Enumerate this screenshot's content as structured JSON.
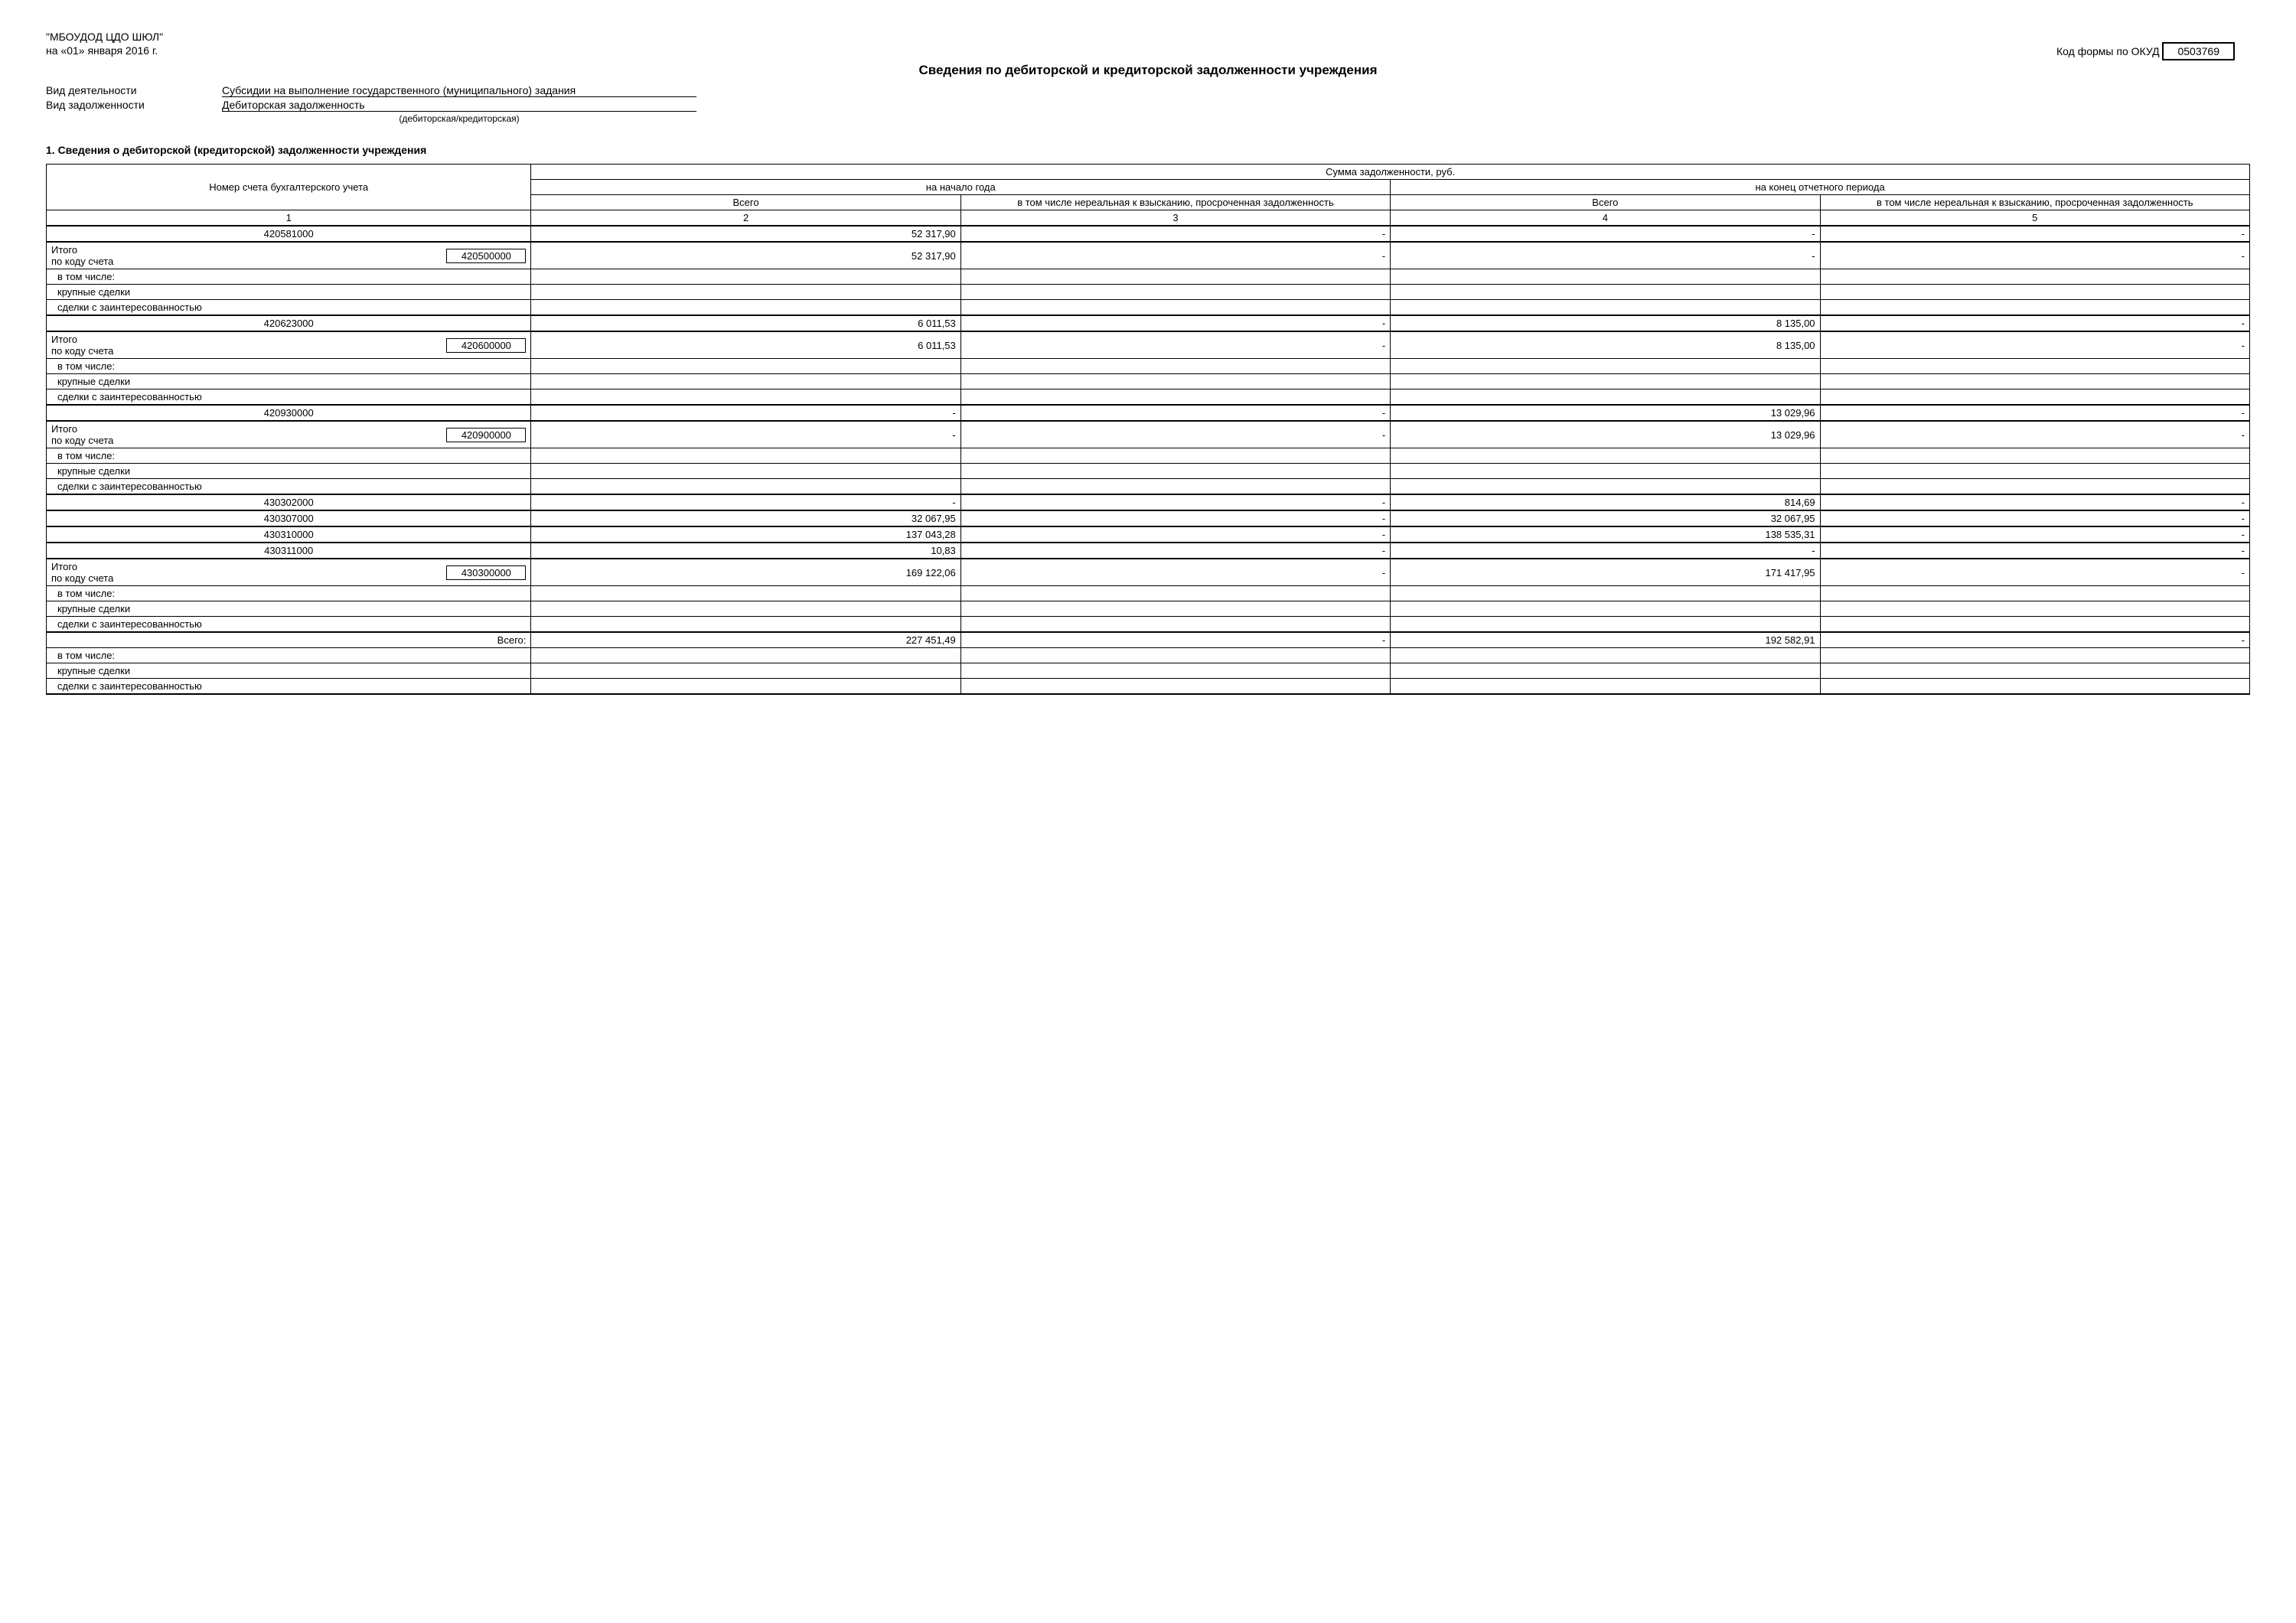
{
  "header": {
    "org": "\"МБОУДОД ЦДО ШЮЛ\"",
    "date_line": "на «01» января 2016 г.",
    "okud_label": "Код формы по ОКУД",
    "okud_code": "0503769"
  },
  "title": "Сведения по дебиторской и кредиторской задолженности учреждения",
  "meta": {
    "activity_label": "Вид деятельности",
    "activity_value": "Субсидии на выполнение государственного (муниципального) задания",
    "debt_label": "Вид задолженности",
    "debt_value": "Дебиторская задолженность",
    "debt_hint": "(дебиторская/кредиторская)"
  },
  "section1_title": "1. Сведения о дебиторской (кредиторской) задолженности учреждения",
  "table": {
    "head": {
      "h_account": "Номер счета бухгалтерского учета",
      "h_sum": "Сумма задолженности, руб.",
      "h_start": "на начало года",
      "h_end": "на конец отчетного периода",
      "h_total": "Всего",
      "h_unreal": "в том числе нереальная к взысканию, просроченная задолженность",
      "colnums": [
        "1",
        "2",
        "3",
        "4",
        "5"
      ]
    },
    "labels": {
      "itogo": "Итого",
      "by_code": "по коду счета",
      "incl": "в том числе:",
      "large": "крупные сделки",
      "interest": "сделки с заинтересованностью",
      "grand": "Всего:"
    },
    "groups": [
      {
        "account": "420581000",
        "v2": "52 317,90",
        "v3": "-",
        "v4": "-",
        "v5": "-",
        "code": "420500000",
        "sum2": "52 317,90",
        "sum3": "-",
        "sum4": "-",
        "sum5": "-"
      },
      {
        "account": "420623000",
        "v2": "6 011,53",
        "v3": "-",
        "v4": "8 135,00",
        "v5": "-",
        "code": "420600000",
        "sum2": "6 011,53",
        "sum3": "-",
        "sum4": "8 135,00",
        "sum5": "-"
      },
      {
        "account": "420930000",
        "v2": "-",
        "v3": "-",
        "v4": "13 029,96",
        "v5": "-",
        "code": "420900000",
        "sum2": "-",
        "sum3": "-",
        "sum4": "13 029,96",
        "sum5": "-"
      },
      {
        "extras": [
          {
            "account": "430302000",
            "v2": "-",
            "v3": "-",
            "v4": "814,69",
            "v5": "-"
          },
          {
            "account": "430307000",
            "v2": "32 067,95",
            "v3": "-",
            "v4": "32 067,95",
            "v5": "-"
          },
          {
            "account": "430310000",
            "v2": "137 043,28",
            "v3": "-",
            "v4": "138 535,31",
            "v5": "-"
          },
          {
            "account": "430311000",
            "v2": "10,83",
            "v3": "-",
            "v4": "-",
            "v5": "-"
          }
        ],
        "code": "430300000",
        "sum2": "169 122,06",
        "sum3": "-",
        "sum4": "171 417,95",
        "sum5": "-"
      }
    ],
    "grand": {
      "v2": "227 451,49",
      "v3": "-",
      "v4": "192 582,91",
      "v5": "-"
    }
  }
}
